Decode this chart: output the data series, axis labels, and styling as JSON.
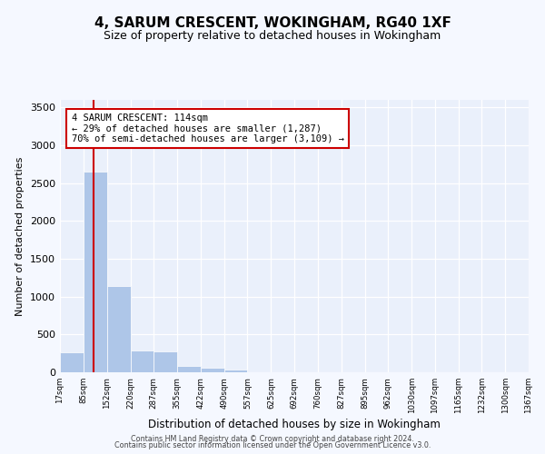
{
  "title": "4, SARUM CRESCENT, WOKINGHAM, RG40 1XF",
  "subtitle": "Size of property relative to detached houses in Wokingham",
  "xlabel": "Distribution of detached houses by size in Wokingham",
  "ylabel": "Number of detached properties",
  "bar_edges": [
    17,
    85,
    152,
    220,
    287,
    355,
    422,
    490,
    557,
    625,
    692,
    760,
    827,
    895,
    962,
    1030,
    1097,
    1165,
    1232,
    1300,
    1367
  ],
  "bar_values": [
    270,
    2650,
    1140,
    285,
    280,
    90,
    60,
    35,
    0,
    0,
    0,
    0,
    0,
    0,
    0,
    0,
    0,
    0,
    0,
    0
  ],
  "bar_color": "#aec6e8",
  "property_size": 114,
  "vline_color": "#cc0000",
  "annotation_text": "4 SARUM CRESCENT: 114sqm\n← 29% of detached houses are smaller (1,287)\n70% of semi-detached houses are larger (3,109) →",
  "annotation_box_color": "#ffffff",
  "annotation_box_edge_color": "#cc0000",
  "ylim": [
    0,
    3600
  ],
  "yticks": [
    0,
    500,
    1000,
    1500,
    2000,
    2500,
    3000,
    3500
  ],
  "bg_color": "#eaf0fb",
  "grid_color": "#ffffff",
  "fig_bg_color": "#f5f8ff",
  "footer_line1": "Contains HM Land Registry data © Crown copyright and database right 2024.",
  "footer_line2": "Contains public sector information licensed under the Open Government Licence v3.0."
}
